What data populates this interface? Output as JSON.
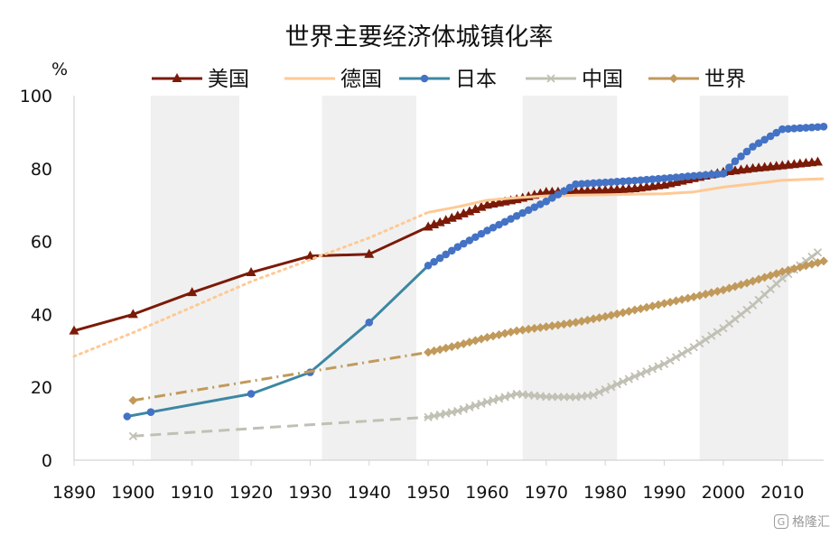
{
  "chart_data": {
    "type": "line",
    "title": "世界主要经济体城镇化率",
    "ylabel": "%",
    "xlabel": "",
    "xlim": [
      1890,
      2017
    ],
    "ylim": [
      0,
      100
    ],
    "x_ticks": [
      "1890",
      "1900",
      "1910",
      "1920",
      "1930",
      "1940",
      "1950",
      "1960",
      "1970",
      "1980",
      "1990",
      "2000",
      "2010"
    ],
    "y_ticks": [
      "0",
      "20",
      "40",
      "60",
      "80",
      "100"
    ],
    "legend_position": "top",
    "shaded_periods": [
      [
        1903,
        1918
      ],
      [
        1932,
        1948
      ],
      [
        1966,
        1982
      ],
      [
        1996,
        2011
      ]
    ],
    "series": [
      {
        "name": "美国",
        "color": "#7b1a07",
        "marker": "triangle",
        "points": [
          [
            1890,
            35.5
          ],
          [
            1900,
            40
          ],
          [
            1910,
            46
          ],
          [
            1920,
            51.5
          ],
          [
            1930,
            56
          ],
          [
            1940,
            56.5
          ],
          [
            1950,
            64
          ],
          [
            1955,
            67
          ],
          [
            1960,
            70
          ],
          [
            1965,
            71.5
          ],
          [
            1970,
            73.5
          ],
          [
            1975,
            73.7
          ],
          [
            1980,
            74
          ],
          [
            1985,
            74.5
          ],
          [
            1990,
            75.5
          ],
          [
            1995,
            77.3
          ],
          [
            2000,
            79
          ],
          [
            2005,
            80
          ],
          [
            2010,
            80.8
          ],
          [
            2016,
            81.8
          ]
        ]
      },
      {
        "name": "德国",
        "color": "#ffc994",
        "marker": "none",
        "segments": [
          {
            "style": "dotted",
            "points": [
              [
                1890,
                28.5
              ],
              [
                1900,
                35
              ],
              [
                1910,
                42
              ],
              [
                1920,
                49
              ],
              [
                1930,
                55
              ],
              [
                1940,
                61
              ],
              [
                1950,
                68
              ]
            ]
          },
          {
            "style": "solid",
            "points": [
              [
                1950,
                68
              ],
              [
                1955,
                69.5
              ],
              [
                1960,
                71.3
              ],
              [
                1965,
                72
              ],
              [
                1970,
                72.5
              ],
              [
                1975,
                72.7
              ],
              [
                1980,
                72.8
              ],
              [
                1985,
                73
              ],
              [
                1990,
                73.1
              ],
              [
                1995,
                73.6
              ],
              [
                2000,
                74.9
              ],
              [
                2005,
                75.8
              ],
              [
                2010,
                76.8
              ],
              [
                2017,
                77.2
              ]
            ]
          }
        ]
      },
      {
        "name": "日本",
        "color": "#3c87a3",
        "marker_color": "#4472c4",
        "marker": "circle",
        "points": [
          [
            1899,
            12
          ],
          [
            1903,
            13.2
          ],
          [
            1920,
            18.2
          ],
          [
            1930,
            24.1
          ],
          [
            1940,
            37.8
          ],
          [
            1950,
            53.4
          ],
          [
            1955,
            58.5
          ],
          [
            1960,
            63
          ],
          [
            1965,
            67
          ],
          [
            1970,
            71
          ],
          [
            1975,
            75.7
          ],
          [
            1980,
            76.2
          ],
          [
            1985,
            76.7
          ],
          [
            1990,
            77.3
          ],
          [
            1995,
            78
          ],
          [
            2000,
            78.6
          ],
          [
            2002,
            82
          ],
          [
            2005,
            86
          ],
          [
            2010,
            90.8
          ],
          [
            2017,
            91.5
          ]
        ]
      },
      {
        "name": "中国",
        "color": "#c0c0b4",
        "marker": "x",
        "segments": [
          {
            "style": "dashed",
            "points": [
              [
                1900,
                6.6
              ],
              [
                1950,
                11.8
              ]
            ]
          },
          {
            "style": "solid",
            "points": [
              [
                1950,
                11.8
              ],
              [
                1955,
                13.5
              ],
              [
                1960,
                16
              ],
              [
                1965,
                18.2
              ],
              [
                1970,
                17.4
              ],
              [
                1975,
                17.3
              ],
              [
                1978,
                17.9
              ],
              [
                1980,
                19.4
              ],
              [
                1985,
                23
              ],
              [
                1990,
                26.4
              ],
              [
                1995,
                31
              ],
              [
                2000,
                36.2
              ],
              [
                2005,
                42.5
              ],
              [
                2010,
                49.9
              ],
              [
                2016,
                57
              ]
            ]
          }
        ]
      },
      {
        "name": "世界",
        "color": "#c19a5b",
        "marker": "diamond",
        "segments": [
          {
            "style": "dashdot",
            "points": [
              [
                1900,
                16.4
              ],
              [
                1950,
                29.6
              ]
            ]
          },
          {
            "style": "solid",
            "points": [
              [
                1950,
                29.6
              ],
              [
                1955,
                31.5
              ],
              [
                1960,
                33.7
              ],
              [
                1965,
                35.5
              ],
              [
                1970,
                36.6
              ],
              [
                1975,
                37.8
              ],
              [
                1980,
                39.4
              ],
              [
                1985,
                41.2
              ],
              [
                1990,
                43
              ],
              [
                1995,
                44.8
              ],
              [
                2000,
                46.7
              ],
              [
                2005,
                49.1
              ],
              [
                2010,
                51.7
              ],
              [
                2017,
                54.6
              ]
            ]
          }
        ]
      }
    ]
  },
  "watermark": "格隆汇"
}
